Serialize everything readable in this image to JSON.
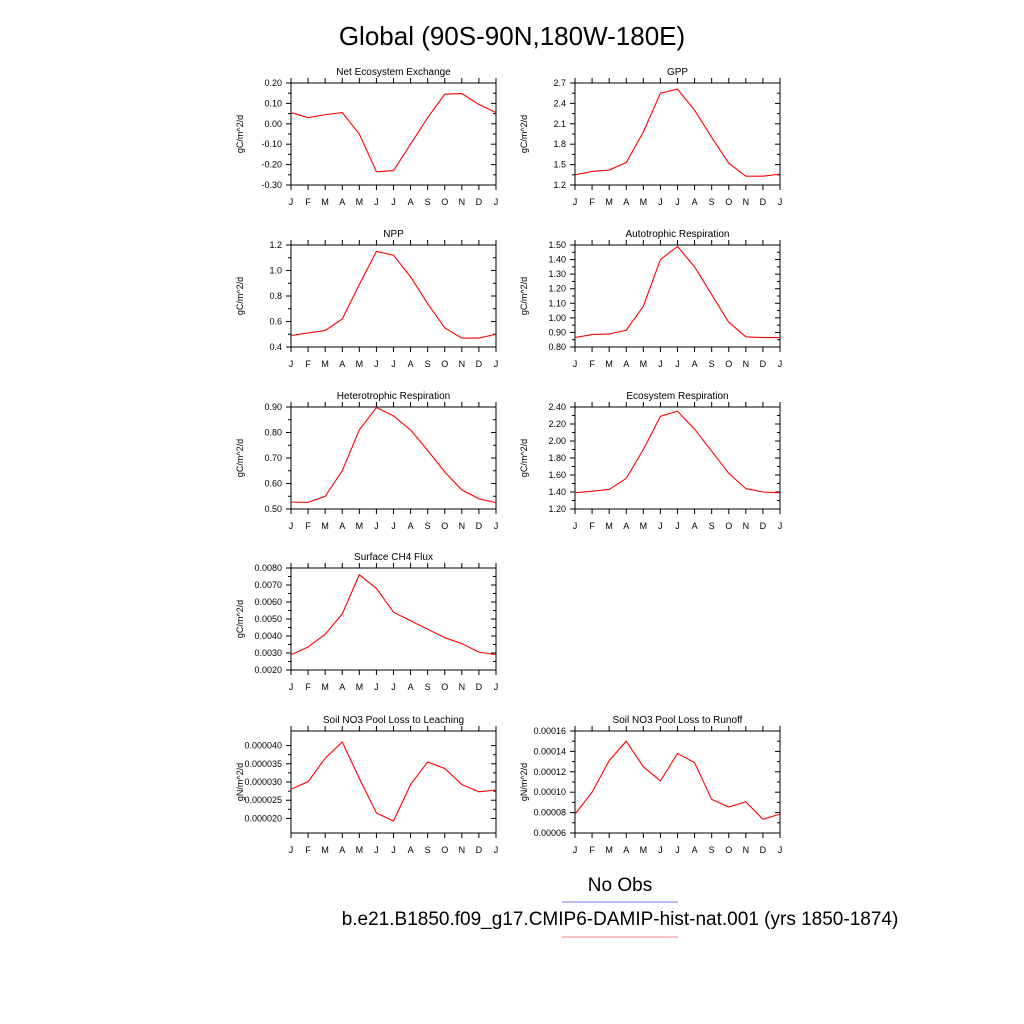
{
  "figure": {
    "title": "Global (90S-90N,180W-180E)",
    "line_color": "#ff0000",
    "legend": [
      {
        "label": "No Obs",
        "color": "#7777ee"
      },
      {
        "label": "b.e21.B1850.f09_g17.CMIP6-DAMIP-hist-nat.001 (yrs 1850-1874)",
        "color": "#ff8888"
      }
    ]
  },
  "chart_data": [
    {
      "type": "line",
      "title": "Net Ecosystem Exchange",
      "ylabel": "gC/m^2/d",
      "categories": [
        "J",
        "F",
        "M",
        "A",
        "M",
        "J",
        "J",
        "A",
        "S",
        "O",
        "N",
        "D",
        "J"
      ],
      "ylim": [
        -0.3,
        0.2
      ],
      "yticks": [
        "-0.30",
        "-0.20",
        "-0.10",
        "0.00",
        "0.10",
        "0.20"
      ],
      "series": [
        {
          "values": [
            0.055,
            0.03,
            0.045,
            0.055,
            -0.05,
            -0.235,
            -0.23,
            -0.1,
            0.03,
            0.145,
            0.148,
            0.095,
            0.055
          ]
        }
      ]
    },
    {
      "type": "line",
      "title": "GPP",
      "ylabel": "gC/m^2/d",
      "categories": [
        "J",
        "F",
        "M",
        "A",
        "M",
        "J",
        "J",
        "A",
        "S",
        "O",
        "N",
        "D",
        "J"
      ],
      "ylim": [
        1.2,
        2.7
      ],
      "yticks": [
        "1.2",
        "1.5",
        "1.8",
        "2.1",
        "2.4",
        "2.7"
      ],
      "series": [
        {
          "values": [
            1.35,
            1.4,
            1.42,
            1.53,
            1.98,
            2.55,
            2.61,
            2.3,
            1.9,
            1.52,
            1.33,
            1.33,
            1.36
          ]
        }
      ]
    },
    {
      "type": "line",
      "title": "NPP",
      "ylabel": "gC/m^2/d",
      "categories": [
        "J",
        "F",
        "M",
        "A",
        "M",
        "J",
        "J",
        "A",
        "S",
        "O",
        "N",
        "D",
        "J"
      ],
      "ylim": [
        0.4,
        1.2
      ],
      "yticks": [
        "0.4",
        "0.6",
        "0.8",
        "1.0",
        "1.2"
      ],
      "series": [
        {
          "values": [
            0.49,
            0.51,
            0.53,
            0.62,
            0.89,
            1.15,
            1.12,
            0.95,
            0.74,
            0.55,
            0.47,
            0.47,
            0.5
          ]
        }
      ]
    },
    {
      "type": "line",
      "title": "Autotrophic Respiration",
      "ylabel": "gC/m^2/d",
      "categories": [
        "J",
        "F",
        "M",
        "A",
        "M",
        "J",
        "J",
        "A",
        "S",
        "O",
        "N",
        "D",
        "J"
      ],
      "ylim": [
        0.8,
        1.5
      ],
      "yticks": [
        "0.80",
        "0.90",
        "1.00",
        "1.10",
        "1.20",
        "1.30",
        "1.40",
        "1.50"
      ],
      "series": [
        {
          "values": [
            0.865,
            0.885,
            0.89,
            0.915,
            1.08,
            1.4,
            1.49,
            1.35,
            1.16,
            0.97,
            0.87,
            0.865,
            0.865
          ]
        }
      ]
    },
    {
      "type": "line",
      "title": "Heterotrophic Respiration",
      "ylabel": "gC/m^2/d",
      "categories": [
        "J",
        "F",
        "M",
        "A",
        "M",
        "J",
        "J",
        "A",
        "S",
        "O",
        "N",
        "D",
        "J"
      ],
      "ylim": [
        0.5,
        0.9
      ],
      "yticks": [
        "0.50",
        "0.60",
        "0.70",
        "0.80",
        "0.90"
      ],
      "series": [
        {
          "values": [
            0.527,
            0.526,
            0.55,
            0.65,
            0.81,
            0.898,
            0.865,
            0.81,
            0.73,
            0.645,
            0.575,
            0.54,
            0.525
          ]
        }
      ]
    },
    {
      "type": "line",
      "title": "Ecosystem Respiration",
      "ylabel": "gC/m^2/d",
      "categories": [
        "J",
        "F",
        "M",
        "A",
        "M",
        "J",
        "J",
        "A",
        "S",
        "O",
        "N",
        "D",
        "J"
      ],
      "ylim": [
        1.2,
        2.4
      ],
      "yticks": [
        "1.20",
        "1.40",
        "1.60",
        "1.80",
        "2.00",
        "2.20",
        "2.40"
      ],
      "series": [
        {
          "values": [
            1.39,
            1.41,
            1.43,
            1.56,
            1.9,
            2.29,
            2.35,
            2.14,
            1.88,
            1.62,
            1.44,
            1.4,
            1.39
          ]
        }
      ]
    },
    {
      "type": "line",
      "title": "Surface CH4 Flux",
      "ylabel": "gC/m^2/d",
      "categories": [
        "J",
        "F",
        "M",
        "A",
        "M",
        "J",
        "J",
        "A",
        "S",
        "O",
        "N",
        "D",
        "J"
      ],
      "ylim": [
        0.002,
        0.008
      ],
      "yticks": [
        "0.0020",
        "0.0030",
        "0.0040",
        "0.0050",
        "0.0060",
        "0.0070",
        "0.0080"
      ],
      "series": [
        {
          "values": [
            0.0029,
            0.00335,
            0.0041,
            0.0053,
            0.0076,
            0.0068,
            0.0054,
            0.0049,
            0.0044,
            0.0039,
            0.00355,
            0.00305,
            0.0029
          ]
        }
      ]
    },
    {
      "type": "line",
      "title": "Soil NO3 Pool Loss to Leaching",
      "ylabel": "gN/m^2/d",
      "categories": [
        "J",
        "F",
        "M",
        "A",
        "M",
        "J",
        "J",
        "A",
        "S",
        "O",
        "N",
        "D",
        "J"
      ],
      "ylim": [
        1.6e-05,
        4.4e-05
      ],
      "yticks": [
        "0.000020",
        "0.000025",
        "0.000030",
        "0.000035",
        "0.000040"
      ],
      "ytick_values": [
        2e-05,
        2.5e-05,
        3e-05,
        3.5e-05,
        4e-05
      ],
      "series": [
        {
          "values": [
            2.8e-05,
            3.01e-05,
            3.65e-05,
            4.1e-05,
            3.1e-05,
            2.15e-05,
            1.93e-05,
            2.93e-05,
            3.55e-05,
            3.37e-05,
            2.93e-05,
            2.73e-05,
            2.78e-05
          ]
        }
      ]
    },
    {
      "type": "line",
      "title": "Soil NO3 Pool Loss to Runoff",
      "ylabel": "gN/m^2/d",
      "categories": [
        "J",
        "F",
        "M",
        "A",
        "M",
        "J",
        "J",
        "A",
        "S",
        "O",
        "N",
        "D",
        "J"
      ],
      "ylim": [
        6e-05,
        0.00016
      ],
      "yticks": [
        "0.00006",
        "0.00008",
        "0.00010",
        "0.00012",
        "0.00014",
        "0.00016"
      ],
      "series": [
        {
          "values": [
            7.85e-05,
            0.0001,
            0.000131,
            0.00015,
            0.000125,
            0.000111,
            0.000138,
            0.000129,
            9.3e-05,
            8.55e-05,
            9.05e-05,
            7.35e-05,
            7.85e-05
          ]
        }
      ]
    }
  ]
}
